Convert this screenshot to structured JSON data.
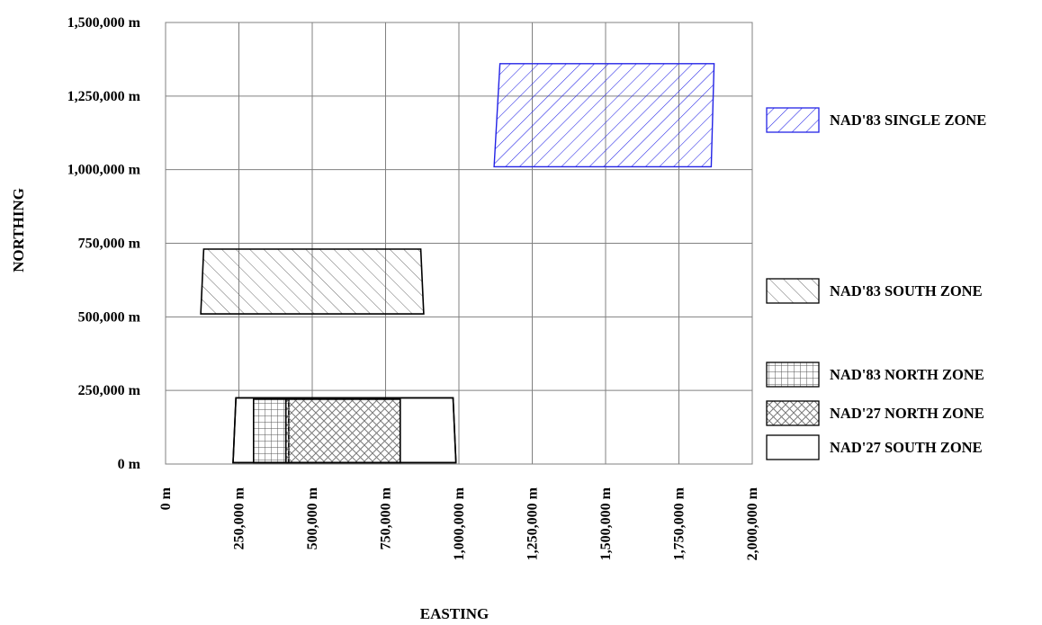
{
  "chart_data": {
    "type": "area",
    "title": "",
    "xlabel": "EASTING",
    "ylabel": "NORTHING",
    "xlim": [
      0,
      2000000
    ],
    "ylim": [
      0,
      1500000
    ],
    "x_ticks": [
      0,
      250000,
      500000,
      750000,
      1000000,
      1250000,
      1500000,
      1750000,
      2000000
    ],
    "y_ticks": [
      0,
      250000,
      500000,
      750000,
      1000000,
      1250000,
      1500000
    ],
    "x_tick_labels": [
      "0 m",
      "250,000 m",
      "500,000 m",
      "750,000 m",
      "1,000,000 m",
      "1,250,000 m",
      "1,500,000 m",
      "1,750,000 m",
      "2,000,000 m"
    ],
    "y_tick_labels": [
      "0 m",
      "250,000 m",
      "500,000 m",
      "750,000 m",
      "1,000,000 m",
      "1,250,000 m",
      "1,500,000 m"
    ],
    "grid": true,
    "legend_position": "right",
    "series": [
      {
        "name": "NAD'83 SINGLE ZONE",
        "pattern": "diagonal-forward",
        "color": "#2323e6",
        "x": [
          1120000,
          1140000,
          1870000,
          1860000
        ],
        "y": [
          1010000,
          1360000,
          1360000,
          1010000
        ]
      },
      {
        "name": "NAD'83 SOUTH ZONE",
        "pattern": "diagonal-backward",
        "color": "#000000",
        "x": [
          120000,
          130000,
          870000,
          880000
        ],
        "y": [
          510000,
          730000,
          730000,
          510000
        ]
      },
      {
        "name": "NAD'83 NORTH ZONE",
        "pattern": "grid",
        "color": "#000000",
        "x": [
          300000,
          300000,
          420000,
          420000
        ],
        "y": [
          5000,
          220000,
          220000,
          5000
        ]
      },
      {
        "name": "NAD'27 NORTH ZONE",
        "pattern": "cross-hatch",
        "color": "#000000",
        "x": [
          410000,
          410000,
          800000,
          800000
        ],
        "y": [
          5000,
          220000,
          220000,
          5000
        ]
      },
      {
        "name": "NAD'27 SOUTH ZONE",
        "pattern": "none",
        "color": "#000000",
        "x": [
          230000,
          240000,
          980000,
          990000
        ],
        "y": [
          5000,
          225000,
          225000,
          5000
        ]
      }
    ]
  }
}
